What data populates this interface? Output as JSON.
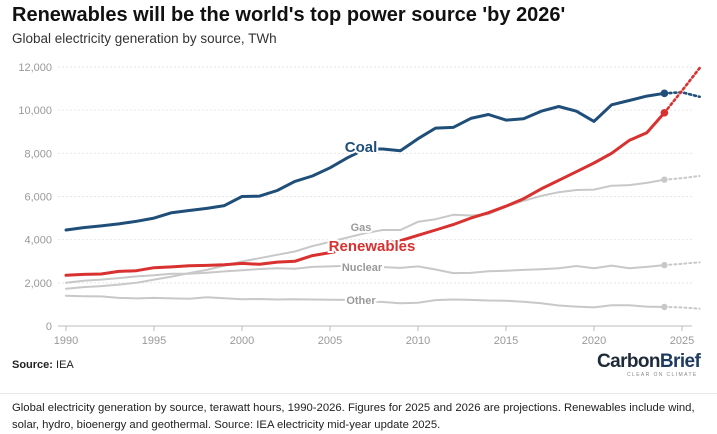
{
  "header": {
    "title": "Renewables will be the world's top power source 'by 2026'",
    "subtitle": "Global electricity generation by source, TWh"
  },
  "source": {
    "label": "Source:",
    "value": "IEA"
  },
  "logo": {
    "carbon": "Carbon",
    "brief": "Brief",
    "tagline": "CLEAR ON CLIMATE"
  },
  "footer": {
    "caption": "Global electricity generation by source, terawatt hours, 1990-2026. Figures for 2025 and 2026 are projections. Renewables include wind, solar, hydro, bioenergy and geothermal. Source: IEA electricity mid-year update 2025."
  },
  "chart_data": {
    "type": "line",
    "title": "Renewables will be the world's top power source 'by 2026'",
    "subtitle": "Global electricity generation by source, TWh",
    "xlabel": "",
    "ylabel": "TWh",
    "xlim": [
      1990,
      2026
    ],
    "ylim": [
      0,
      12000
    ],
    "grid": true,
    "x_ticks": [
      1990,
      1995,
      2000,
      2005,
      2010,
      2015,
      2020,
      2025
    ],
    "y_ticks": [
      0,
      2000,
      4000,
      6000,
      8000,
      10000,
      12000
    ],
    "y_tick_labels": [
      "0",
      "2,000",
      "4,000",
      "6,000",
      "8,000",
      "10,000",
      "12,000"
    ],
    "x": [
      1990,
      1991,
      1992,
      1993,
      1994,
      1995,
      1996,
      1997,
      1998,
      1999,
      2000,
      2001,
      2002,
      2003,
      2004,
      2005,
      2006,
      2007,
      2008,
      2009,
      2010,
      2011,
      2012,
      2013,
      2014,
      2015,
      2016,
      2017,
      2018,
      2019,
      2020,
      2021,
      2022,
      2023,
      2024
    ],
    "projection_x": [
      2024,
      2025,
      2026
    ],
    "series": [
      {
        "name": "Coal",
        "label": "Coal",
        "color": "#1f4e79",
        "emphasis": true,
        "values": [
          4450,
          4560,
          4640,
          4730,
          4850,
          5000,
          5250,
          5350,
          5450,
          5580,
          6000,
          6020,
          6280,
          6700,
          6950,
          7330,
          7800,
          8200,
          8200,
          8120,
          8680,
          9170,
          9200,
          9620,
          9800,
          9540,
          9600,
          9950,
          10170,
          9950,
          9480,
          10250,
          10450,
          10650,
          10780
        ],
        "projection": [
          10780,
          10830,
          10620
        ]
      },
      {
        "name": "Renewables",
        "label": "Renewables",
        "color": "#d8312f",
        "emphasis": true,
        "values": [
          2350,
          2390,
          2410,
          2530,
          2560,
          2700,
          2740,
          2790,
          2810,
          2840,
          2900,
          2860,
          2960,
          3000,
          3260,
          3400,
          3550,
          3700,
          3800,
          3950,
          4200,
          4450,
          4700,
          5000,
          5250,
          5550,
          5900,
          6350,
          6750,
          7150,
          7550,
          8000,
          8600,
          8950,
          9880
        ],
        "projection": [
          9880,
          10900,
          11950
        ]
      },
      {
        "name": "Gas",
        "label": "Gas",
        "color": "#c8c8c8",
        "emphasis": false,
        "values": [
          1730,
          1800,
          1850,
          1920,
          2000,
          2150,
          2290,
          2450,
          2600,
          2800,
          2990,
          3140,
          3300,
          3450,
          3700,
          3900,
          4100,
          4300,
          4450,
          4450,
          4830,
          4950,
          5150,
          5120,
          5180,
          5530,
          5800,
          6030,
          6200,
          6300,
          6320,
          6500,
          6530,
          6630,
          6780
        ],
        "projection": [
          6780,
          6850,
          6950
        ]
      },
      {
        "name": "Nuclear",
        "label": "Nuclear",
        "color": "#c8c8c8",
        "emphasis": false,
        "values": [
          2000,
          2100,
          2150,
          2220,
          2300,
          2350,
          2420,
          2420,
          2470,
          2530,
          2580,
          2640,
          2680,
          2650,
          2740,
          2760,
          2790,
          2750,
          2730,
          2690,
          2760,
          2620,
          2450,
          2460,
          2540,
          2560,
          2600,
          2630,
          2680,
          2780,
          2680,
          2800,
          2680,
          2740,
          2820
        ],
        "projection": [
          2820,
          2880,
          2950
        ]
      },
      {
        "name": "Other",
        "label": "Other",
        "color": "#c8c8c8",
        "emphasis": false,
        "values": [
          1400,
          1380,
          1370,
          1300,
          1280,
          1300,
          1280,
          1260,
          1330,
          1290,
          1240,
          1250,
          1230,
          1240,
          1230,
          1220,
          1210,
          1150,
          1110,
          1050,
          1080,
          1200,
          1230,
          1210,
          1180,
          1170,
          1120,
          1050,
          950,
          900,
          860,
          960,
          960,
          900,
          880
        ],
        "projection": [
          880,
          860,
          800
        ]
      }
    ]
  }
}
